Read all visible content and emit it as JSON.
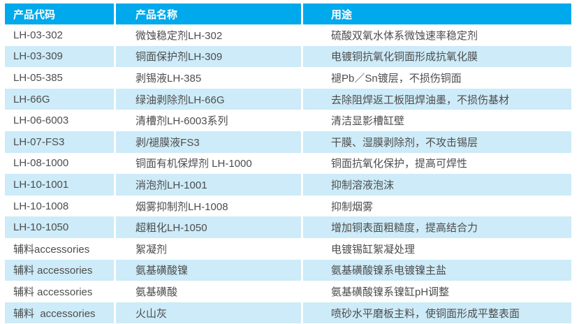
{
  "header": {
    "code": "产品代码",
    "name": "产品名称",
    "usage": "用途"
  },
  "rows": [
    {
      "code": "LH-03-302",
      "name": "微蚀稳定剂LH-302",
      "usage": "硫酸双氧水体系微蚀速率稳定剂"
    },
    {
      "code": "LH-03-309",
      "name": "铜面保护剂LH-309",
      "usage": "电镀铜抗氧化铜面形成抗氧化膜"
    },
    {
      "code": "LH-05-385",
      "name": "剥锡液LH-385",
      "usage": "褪Pb／Sn镀层，不损伤铜面"
    },
    {
      "code": "LH-66G",
      "name": "绿油剥除剂LH-66G",
      "usage": "去除阻焊返工板阻焊油墨，不损伤基材"
    },
    {
      "code": "LH-06-6003",
      "name": "清槽剂LH-6003系列",
      "usage": "清洁显影槽缸壁"
    },
    {
      "code": "LH-07-FS3",
      "name": "剥/褪膜液FS3",
      "usage": "干膜、湿膜剥除剂，不攻击锡层"
    },
    {
      "code": "LH-08-1000",
      "name": "铜面有机保焊剂 LH-1000",
      "usage": "铜面抗氧化保护，提高可焊性"
    },
    {
      "code": "LH-10-1001",
      "name": "消泡剂LH-1001",
      "usage": "抑制溶液泡沫"
    },
    {
      "code": "LH-10-1008",
      "name": "烟雾抑制剂LH-1008",
      "usage": "抑制烟雾"
    },
    {
      "code": "LH-10-1050",
      "name": "超粗化LH-1050",
      "usage": "增加铜表面粗糙度，提高结合力"
    },
    {
      "code": "辅料accessories",
      "name": "絮凝剂",
      "usage": "电镀锡缸絮凝处理"
    },
    {
      "code": "辅料 accessories",
      "name": "氨基磺酸镍",
      "usage": "氨基磺酸镍系电镀镍主盐"
    },
    {
      "code": "辅料 accessories",
      "name": "氨基磺酸",
      "usage": "氨基磺酸镍系镍缸pH调整"
    },
    {
      "code": "辅料  accessories",
      "name": "火山灰",
      "usage": "喷砂水平磨板主料，使铜面形成平整表面"
    }
  ],
  "colors": {
    "header_bg": "#00A9EC",
    "header_text": "#FFFFFF",
    "stripe_bg": "#CDEBF8",
    "body_text": "#4D4D4D"
  }
}
